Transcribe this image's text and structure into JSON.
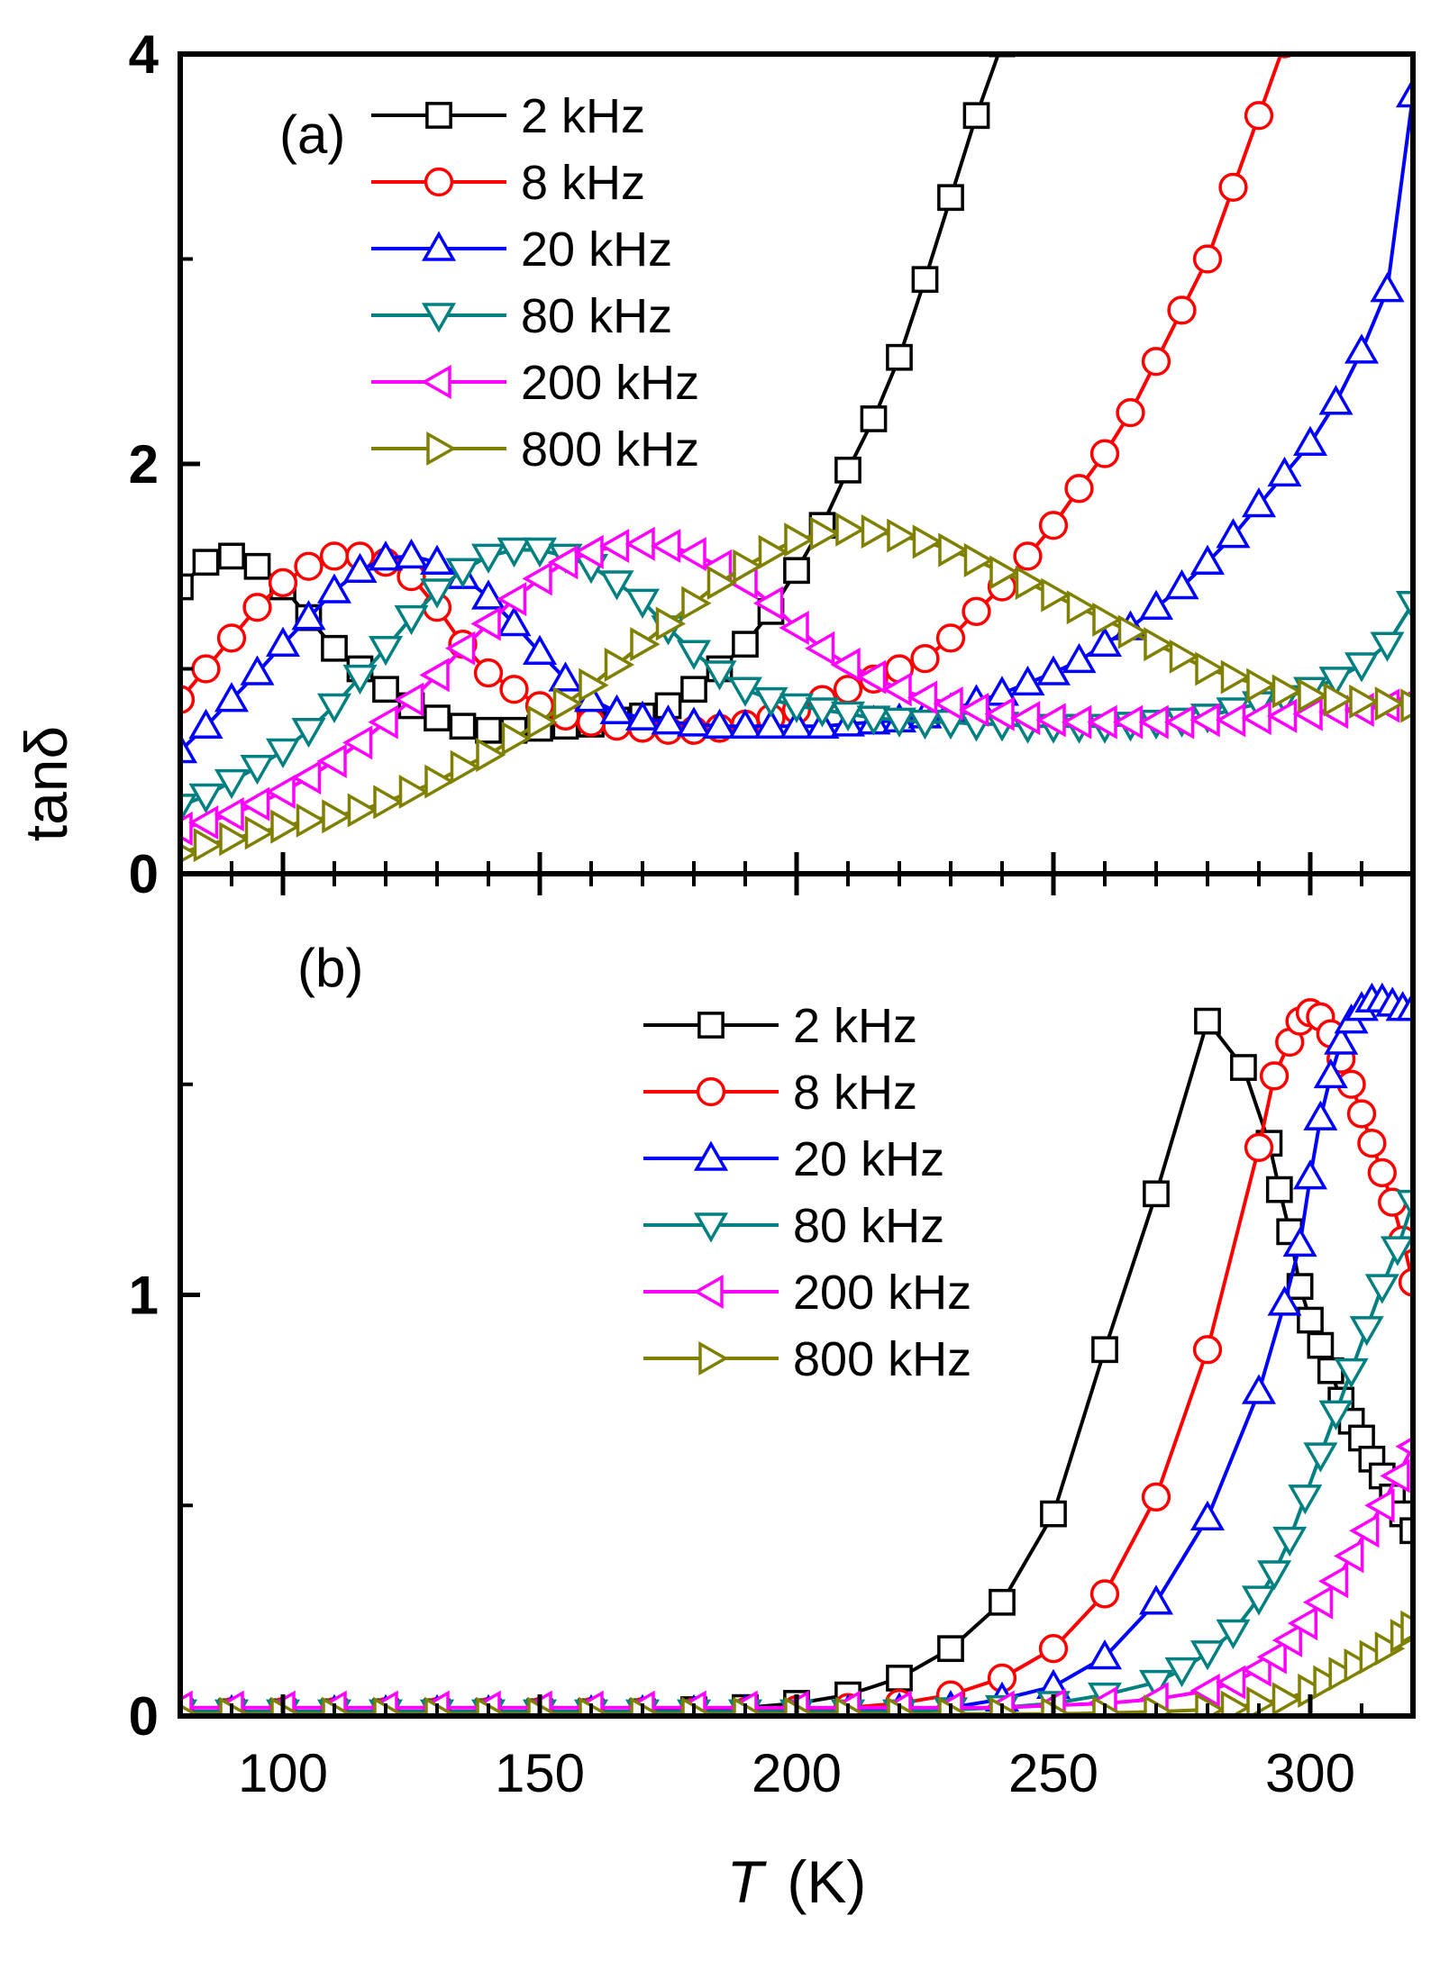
{
  "chart_data": [
    {
      "type": "line",
      "panel_label": "(a)",
      "ylabel": "tanδ",
      "xlabel": "",
      "xlim": [
        80,
        320
      ],
      "ylim": [
        0,
        4
      ],
      "y_ticks": [
        0,
        2,
        4
      ],
      "y_minor_ticks": [
        1,
        3
      ],
      "x_ticks": [
        100,
        150,
        200,
        250,
        300
      ],
      "grid": false,
      "legend_position": "top-left",
      "series": [
        {
          "name": "2 kHz",
          "color": "#000000",
          "marker": "square",
          "x": [
            80,
            85,
            90,
            95,
            100,
            105,
            110,
            115,
            120,
            125,
            130,
            135,
            140,
            145,
            150,
            155,
            160,
            165,
            170,
            175,
            180,
            185,
            190,
            195,
            200,
            205,
            210,
            215,
            220,
            225,
            230,
            235,
            240
          ],
          "y": [
            1.4,
            1.52,
            1.55,
            1.5,
            1.4,
            1.25,
            1.1,
            1.0,
            0.9,
            0.82,
            0.76,
            0.72,
            0.7,
            0.7,
            0.71,
            0.72,
            0.73,
            0.75,
            0.77,
            0.82,
            0.9,
            1.0,
            1.12,
            1.28,
            1.48,
            1.7,
            1.97,
            2.22,
            2.52,
            2.9,
            3.3,
            3.7,
            4.05
          ]
        },
        {
          "name": "8 kHz",
          "color": "#ff0000",
          "marker": "circle",
          "x": [
            80,
            85,
            90,
            95,
            100,
            105,
            110,
            115,
            120,
            125,
            130,
            135,
            140,
            145,
            150,
            155,
            160,
            165,
            170,
            175,
            180,
            185,
            190,
            195,
            200,
            205,
            210,
            215,
            220,
            225,
            230,
            235,
            240,
            245,
            250,
            255,
            260,
            265,
            270,
            275,
            280,
            285,
            290,
            295
          ],
          "y": [
            0.85,
            1.0,
            1.15,
            1.3,
            1.42,
            1.5,
            1.55,
            1.55,
            1.52,
            1.45,
            1.3,
            1.12,
            0.98,
            0.9,
            0.82,
            0.77,
            0.74,
            0.72,
            0.71,
            0.7,
            0.7,
            0.71,
            0.73,
            0.76,
            0.8,
            0.85,
            0.9,
            0.95,
            1.0,
            1.05,
            1.15,
            1.28,
            1.4,
            1.55,
            1.7,
            1.88,
            2.05,
            2.25,
            2.5,
            2.75,
            3.0,
            3.35,
            3.7,
            4.05
          ]
        },
        {
          "name": "20 kHz",
          "color": "#0000ff",
          "marker": "triangle-up",
          "x": [
            80,
            85,
            90,
            95,
            100,
            105,
            110,
            115,
            120,
            125,
            130,
            135,
            140,
            145,
            150,
            155,
            160,
            165,
            170,
            175,
            180,
            185,
            190,
            195,
            200,
            205,
            210,
            215,
            220,
            225,
            230,
            235,
            240,
            245,
            250,
            255,
            260,
            265,
            270,
            275,
            280,
            285,
            290,
            295,
            300,
            305,
            310,
            315,
            320
          ],
          "y": [
            0.6,
            0.72,
            0.85,
            0.98,
            1.12,
            1.25,
            1.38,
            1.48,
            1.54,
            1.55,
            1.52,
            1.45,
            1.35,
            1.22,
            1.08,
            0.95,
            0.85,
            0.79,
            0.76,
            0.74,
            0.73,
            0.72,
            0.72,
            0.72,
            0.72,
            0.72,
            0.73,
            0.74,
            0.75,
            0.77,
            0.8,
            0.84,
            0.88,
            0.93,
            0.98,
            1.04,
            1.12,
            1.2,
            1.3,
            1.4,
            1.52,
            1.65,
            1.8,
            1.95,
            2.1,
            2.3,
            2.55,
            2.85,
            3.8
          ]
        },
        {
          "name": "80 kHz",
          "color": "#008080",
          "marker": "triangle-down",
          "x": [
            80,
            85,
            90,
            95,
            100,
            105,
            110,
            115,
            120,
            125,
            130,
            135,
            140,
            145,
            150,
            155,
            160,
            165,
            170,
            175,
            180,
            185,
            190,
            195,
            200,
            205,
            210,
            215,
            220,
            225,
            230,
            235,
            240,
            245,
            250,
            255,
            260,
            265,
            270,
            275,
            280,
            285,
            290,
            295,
            300,
            305,
            310,
            315,
            320
          ],
          "y": [
            0.33,
            0.38,
            0.45,
            0.52,
            0.6,
            0.7,
            0.82,
            0.96,
            1.1,
            1.25,
            1.38,
            1.48,
            1.55,
            1.58,
            1.58,
            1.55,
            1.5,
            1.42,
            1.33,
            1.2,
            1.08,
            0.98,
            0.9,
            0.85,
            0.82,
            0.8,
            0.78,
            0.76,
            0.75,
            0.74,
            0.74,
            0.73,
            0.73,
            0.72,
            0.72,
            0.72,
            0.72,
            0.73,
            0.74,
            0.75,
            0.77,
            0.8,
            0.83,
            0.86,
            0.9,
            0.95,
            1.02,
            1.12,
            1.32
          ]
        },
        {
          "name": "200 kHz",
          "color": "#ff00ff",
          "marker": "triangle-left",
          "x": [
            80,
            85,
            90,
            95,
            100,
            105,
            110,
            115,
            120,
            125,
            130,
            135,
            140,
            145,
            150,
            155,
            160,
            165,
            170,
            175,
            180,
            185,
            190,
            195,
            200,
            205,
            210,
            215,
            220,
            225,
            230,
            235,
            240,
            245,
            250,
            255,
            260,
            265,
            270,
            275,
            280,
            285,
            290,
            295,
            300,
            305,
            310,
            315,
            320
          ],
          "y": [
            0.22,
            0.25,
            0.29,
            0.34,
            0.4,
            0.47,
            0.55,
            0.64,
            0.74,
            0.85,
            0.97,
            1.1,
            1.22,
            1.34,
            1.44,
            1.52,
            1.57,
            1.6,
            1.61,
            1.6,
            1.56,
            1.5,
            1.42,
            1.32,
            1.2,
            1.1,
            1.02,
            0.96,
            0.9,
            0.86,
            0.83,
            0.8,
            0.78,
            0.76,
            0.75,
            0.74,
            0.74,
            0.74,
            0.74,
            0.74,
            0.75,
            0.75,
            0.76,
            0.77,
            0.78,
            0.79,
            0.8,
            0.82,
            0.85
          ]
        },
        {
          "name": "800 kHz",
          "color": "#808000",
          "marker": "triangle-right",
          "x": [
            80,
            85,
            90,
            95,
            100,
            105,
            110,
            115,
            120,
            125,
            130,
            135,
            140,
            145,
            150,
            155,
            160,
            165,
            170,
            175,
            180,
            185,
            190,
            195,
            200,
            205,
            210,
            215,
            220,
            225,
            230,
            235,
            240,
            245,
            250,
            255,
            260,
            265,
            270,
            275,
            280,
            285,
            290,
            295,
            300,
            305,
            310,
            315,
            320
          ],
          "y": [
            0.1,
            0.14,
            0.17,
            0.2,
            0.23,
            0.26,
            0.28,
            0.31,
            0.35,
            0.4,
            0.45,
            0.52,
            0.58,
            0.66,
            0.74,
            0.83,
            0.92,
            1.02,
            1.12,
            1.22,
            1.32,
            1.42,
            1.5,
            1.57,
            1.63,
            1.66,
            1.68,
            1.67,
            1.65,
            1.62,
            1.58,
            1.53,
            1.47,
            1.42,
            1.36,
            1.3,
            1.24,
            1.18,
            1.12,
            1.06,
            1.0,
            0.96,
            0.92,
            0.89,
            0.87,
            0.85,
            0.84,
            0.83,
            0.82
          ]
        }
      ]
    },
    {
      "type": "line",
      "panel_label": "(b)",
      "ylabel": "",
      "xlabel": "T (K)",
      "xlabel_main": "T",
      "xlabel_unit": "(K)",
      "xlim": [
        80,
        320
      ],
      "ylim": [
        0,
        2
      ],
      "y_ticks": [
        0,
        1
      ],
      "y_minor_ticks": [
        0.5,
        1.5
      ],
      "x_ticks": [
        100,
        150,
        200,
        250,
        300
      ],
      "grid": false,
      "legend_position": "center-right",
      "series": [
        {
          "name": "2 kHz",
          "color": "#000000",
          "marker": "square",
          "x": [
            80,
            90,
            100,
            110,
            120,
            130,
            140,
            150,
            160,
            170,
            180,
            190,
            200,
            210,
            220,
            230,
            240,
            250,
            260,
            270,
            280,
            287,
            292,
            294,
            296,
            298,
            300,
            302,
            304,
            306,
            308,
            310,
            312,
            314,
            316,
            318,
            320
          ],
          "y": [
            0.01,
            0.01,
            0.01,
            0.01,
            0.01,
            0.01,
            0.01,
            0.01,
            0.01,
            0.01,
            0.015,
            0.02,
            0.03,
            0.05,
            0.09,
            0.16,
            0.27,
            0.48,
            0.87,
            1.24,
            1.65,
            1.54,
            1.36,
            1.25,
            1.15,
            1.02,
            0.94,
            0.88,
            0.82,
            0.75,
            0.7,
            0.66,
            0.61,
            0.57,
            0.52,
            0.48,
            0.44
          ]
        },
        {
          "name": "8 kHz",
          "color": "#ff0000",
          "marker": "circle",
          "x": [
            80,
            90,
            100,
            110,
            120,
            130,
            140,
            150,
            160,
            170,
            180,
            190,
            200,
            210,
            220,
            230,
            240,
            250,
            260,
            270,
            280,
            290,
            293,
            296,
            298,
            300,
            302,
            304,
            306,
            308,
            310,
            312,
            314,
            316,
            318,
            320
          ],
          "y": [
            0.01,
            0.01,
            0.01,
            0.01,
            0.01,
            0.01,
            0.01,
            0.01,
            0.01,
            0.01,
            0.01,
            0.01,
            0.015,
            0.02,
            0.03,
            0.05,
            0.09,
            0.16,
            0.29,
            0.52,
            0.87,
            1.35,
            1.52,
            1.6,
            1.65,
            1.67,
            1.66,
            1.62,
            1.56,
            1.5,
            1.43,
            1.36,
            1.29,
            1.22,
            1.13,
            1.03
          ]
        },
        {
          "name": "20 kHz",
          "color": "#0000ff",
          "marker": "triangle-up",
          "x": [
            80,
            90,
            100,
            110,
            120,
            130,
            140,
            150,
            160,
            170,
            180,
            190,
            200,
            210,
            220,
            230,
            240,
            250,
            260,
            270,
            280,
            290,
            295,
            298,
            300,
            302,
            304,
            306,
            308,
            310,
            312,
            314,
            316,
            318,
            320
          ],
          "y": [
            0.01,
            0.01,
            0.01,
            0.01,
            0.01,
            0.01,
            0.01,
            0.01,
            0.01,
            0.01,
            0.01,
            0.01,
            0.01,
            0.01,
            0.015,
            0.02,
            0.04,
            0.07,
            0.14,
            0.27,
            0.47,
            0.77,
            0.98,
            1.12,
            1.28,
            1.42,
            1.52,
            1.6,
            1.65,
            1.68,
            1.7,
            1.7,
            1.69,
            1.68,
            1.68
          ]
        },
        {
          "name": "80 kHz",
          "color": "#008080",
          "marker": "triangle-down",
          "x": [
            80,
            90,
            100,
            110,
            120,
            130,
            140,
            150,
            160,
            170,
            180,
            190,
            200,
            210,
            220,
            230,
            240,
            250,
            260,
            270,
            275,
            280,
            285,
            290,
            293,
            296,
            299,
            302,
            305,
            308,
            311,
            314,
            317,
            320
          ],
          "y": [
            0.01,
            0.01,
            0.01,
            0.01,
            0.01,
            0.01,
            0.01,
            0.01,
            0.01,
            0.01,
            0.01,
            0.01,
            0.01,
            0.01,
            0.01,
            0.015,
            0.02,
            0.03,
            0.05,
            0.08,
            0.11,
            0.15,
            0.2,
            0.28,
            0.34,
            0.42,
            0.52,
            0.62,
            0.72,
            0.82,
            0.92,
            1.02,
            1.11,
            1.22
          ]
        },
        {
          "name": "200 kHz",
          "color": "#ff00ff",
          "marker": "triangle-left",
          "x": [
            80,
            90,
            100,
            110,
            120,
            130,
            140,
            150,
            160,
            170,
            180,
            190,
            200,
            210,
            220,
            230,
            240,
            250,
            260,
            270,
            280,
            285,
            290,
            293,
            296,
            299,
            302,
            305,
            308,
            311,
            314,
            317,
            320
          ],
          "y": [
            0.02,
            0.02,
            0.02,
            0.02,
            0.02,
            0.02,
            0.02,
            0.02,
            0.02,
            0.02,
            0.02,
            0.02,
            0.02,
            0.02,
            0.02,
            0.02,
            0.02,
            0.025,
            0.03,
            0.04,
            0.06,
            0.08,
            0.11,
            0.14,
            0.18,
            0.22,
            0.27,
            0.32,
            0.38,
            0.44,
            0.5,
            0.57,
            0.64
          ]
        },
        {
          "name": "800 kHz",
          "color": "#808000",
          "marker": "triangle-right",
          "x": [
            80,
            90,
            100,
            110,
            120,
            130,
            140,
            150,
            160,
            170,
            180,
            190,
            200,
            210,
            220,
            230,
            240,
            250,
            260,
            270,
            280,
            285,
            290,
            295,
            300,
            303,
            306,
            309,
            312,
            315,
            318,
            320
          ],
          "y": [
            0.005,
            0.005,
            0.005,
            0.005,
            0.005,
            0.005,
            0.005,
            0.005,
            0.005,
            0.005,
            0.005,
            0.005,
            0.005,
            0.005,
            0.005,
            0.005,
            0.005,
            0.005,
            0.007,
            0.01,
            0.015,
            0.02,
            0.03,
            0.04,
            0.06,
            0.08,
            0.1,
            0.12,
            0.14,
            0.16,
            0.19,
            0.21
          ]
        }
      ]
    }
  ]
}
